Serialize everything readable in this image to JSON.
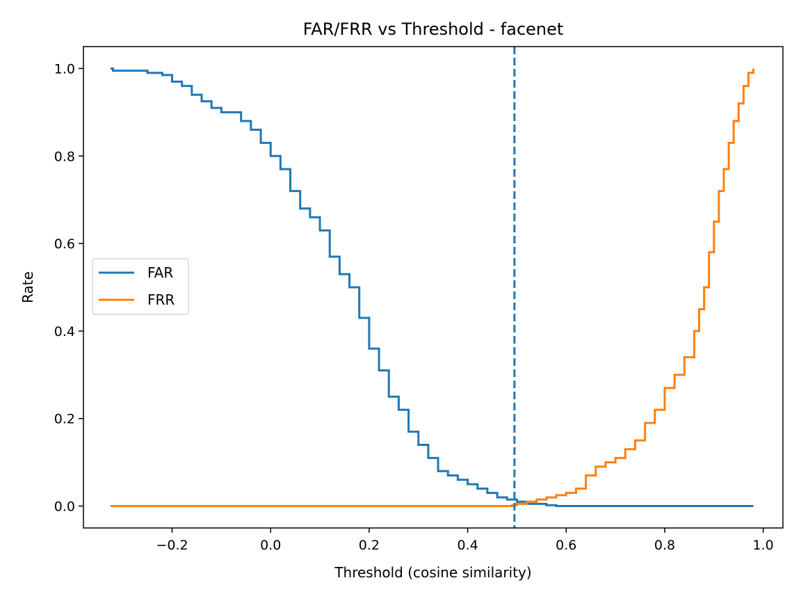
{
  "chart_data": {
    "type": "line",
    "title": "FAR/FRR vs Threshold - facenet",
    "xlabel": "Threshold (cosine similarity)",
    "ylabel": "Rate",
    "xlim": [
      -0.38,
      1.04
    ],
    "ylim": [
      -0.05,
      1.05
    ],
    "xticks": [
      -0.2,
      0.0,
      0.2,
      0.4,
      0.6,
      0.8,
      1.0
    ],
    "xtick_labels": [
      "−0.2",
      "0.0",
      "0.2",
      "0.4",
      "0.6",
      "0.8",
      "1.0"
    ],
    "yticks": [
      0.0,
      0.2,
      0.4,
      0.6,
      0.8,
      1.0
    ],
    "ytick_labels": [
      "0.0",
      "0.2",
      "0.4",
      "0.6",
      "0.8",
      "1.0"
    ],
    "grid": false,
    "legend_position": "center-left",
    "threshold_line": {
      "x": 0.495,
      "style": "dashed",
      "color": "#1f77b4"
    },
    "series": [
      {
        "name": "FAR",
        "color": "#1f77b4",
        "step": true,
        "x": [
          -0.325,
          -0.32,
          -0.25,
          -0.22,
          -0.2,
          -0.18,
          -0.16,
          -0.14,
          -0.12,
          -0.1,
          -0.08,
          -0.06,
          -0.04,
          -0.02,
          0.0,
          0.02,
          0.04,
          0.06,
          0.08,
          0.1,
          0.12,
          0.14,
          0.16,
          0.18,
          0.2,
          0.22,
          0.24,
          0.26,
          0.28,
          0.3,
          0.32,
          0.34,
          0.36,
          0.38,
          0.4,
          0.42,
          0.44,
          0.46,
          0.48,
          0.5,
          0.52,
          0.54,
          0.56,
          0.58,
          0.7,
          0.8,
          0.9,
          0.98
        ],
        "y": [
          1.0,
          0.995,
          0.99,
          0.985,
          0.97,
          0.96,
          0.94,
          0.925,
          0.91,
          0.9,
          0.9,
          0.88,
          0.86,
          0.83,
          0.8,
          0.77,
          0.72,
          0.68,
          0.66,
          0.63,
          0.57,
          0.53,
          0.5,
          0.43,
          0.36,
          0.31,
          0.25,
          0.22,
          0.17,
          0.14,
          0.11,
          0.08,
          0.07,
          0.06,
          0.05,
          0.04,
          0.03,
          0.02,
          0.015,
          0.01,
          0.005,
          0.005,
          0.002,
          0.0,
          0.0,
          0.0,
          0.0,
          0.0
        ]
      },
      {
        "name": "FRR",
        "color": "#ff7f0e",
        "step": true,
        "x": [
          -0.325,
          0.0,
          0.2,
          0.4,
          0.49,
          0.5,
          0.52,
          0.54,
          0.56,
          0.58,
          0.6,
          0.62,
          0.64,
          0.66,
          0.68,
          0.7,
          0.72,
          0.74,
          0.76,
          0.78,
          0.8,
          0.82,
          0.84,
          0.86,
          0.87,
          0.88,
          0.89,
          0.9,
          0.91,
          0.92,
          0.93,
          0.94,
          0.95,
          0.96,
          0.97,
          0.98
        ],
        "y": [
          0.0,
          0.0,
          0.0,
          0.0,
          0.002,
          0.005,
          0.01,
          0.015,
          0.02,
          0.025,
          0.03,
          0.04,
          0.07,
          0.09,
          0.1,
          0.11,
          0.13,
          0.15,
          0.19,
          0.22,
          0.27,
          0.3,
          0.34,
          0.4,
          0.45,
          0.5,
          0.58,
          0.65,
          0.72,
          0.77,
          0.83,
          0.88,
          0.92,
          0.96,
          0.99,
          1.0
        ]
      }
    ]
  }
}
